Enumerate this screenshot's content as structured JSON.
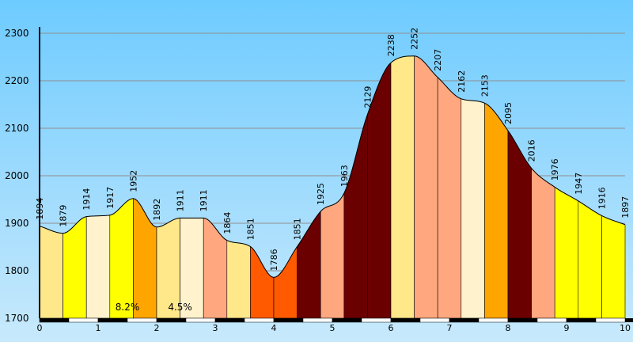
{
  "chart_data": {
    "type": "area",
    "title": "",
    "xlabel": "",
    "ylabel": "",
    "xlim": [
      0,
      10
    ],
    "ylim": [
      1700,
      2300
    ],
    "y_ticks": [
      1700,
      1800,
      1900,
      2000,
      2100,
      2200,
      2300
    ],
    "x_ticks": [
      0,
      1,
      2,
      3,
      4,
      5,
      6,
      7,
      8,
      9,
      10
    ],
    "grid": true,
    "background_colors": [
      "#6ecbff",
      "#c8e9fc"
    ],
    "x": [
      0,
      0.4,
      0.8,
      1.2,
      1.6,
      2.0,
      2.4,
      2.8,
      3.2,
      3.6,
      4.0,
      4.4,
      4.8,
      5.2,
      5.6,
      6.0,
      6.4,
      6.8,
      7.2,
      7.6,
      8.0,
      8.4,
      8.8,
      9.2,
      9.6,
      10.0
    ],
    "elevations": [
      1894,
      1879,
      1914,
      1917,
      1952,
      1892,
      1911,
      1911,
      1864,
      1851,
      1786,
      1851,
      1925,
      1963,
      2129,
      2238,
      2252,
      2207,
      2162,
      2153,
      2095,
      2016,
      1976,
      1947,
      1916,
      1897
    ],
    "segment_colors": [
      "#ffe88a",
      "#ffff00",
      "#fff2cc",
      "#ffff00",
      "#ffa500",
      "#ffe88a",
      "#fff2cc",
      "#ffa880",
      "#ffe88a",
      "#ff5a00",
      "#ff5a00",
      "#6b0000",
      "#ffa880",
      "#6b0000",
      "#6b0000",
      "#ffe88a",
      "#ffa880",
      "#ffa880",
      "#fff2cc",
      "#ffa500",
      "#6b0000",
      "#ffa880",
      "#ffff00",
      "#ffff00",
      "#ffff00"
    ],
    "annotations": [
      {
        "text": "8.2%",
        "x": 1.5
      },
      {
        "text": "4.5%",
        "x": 2.4
      }
    ]
  }
}
